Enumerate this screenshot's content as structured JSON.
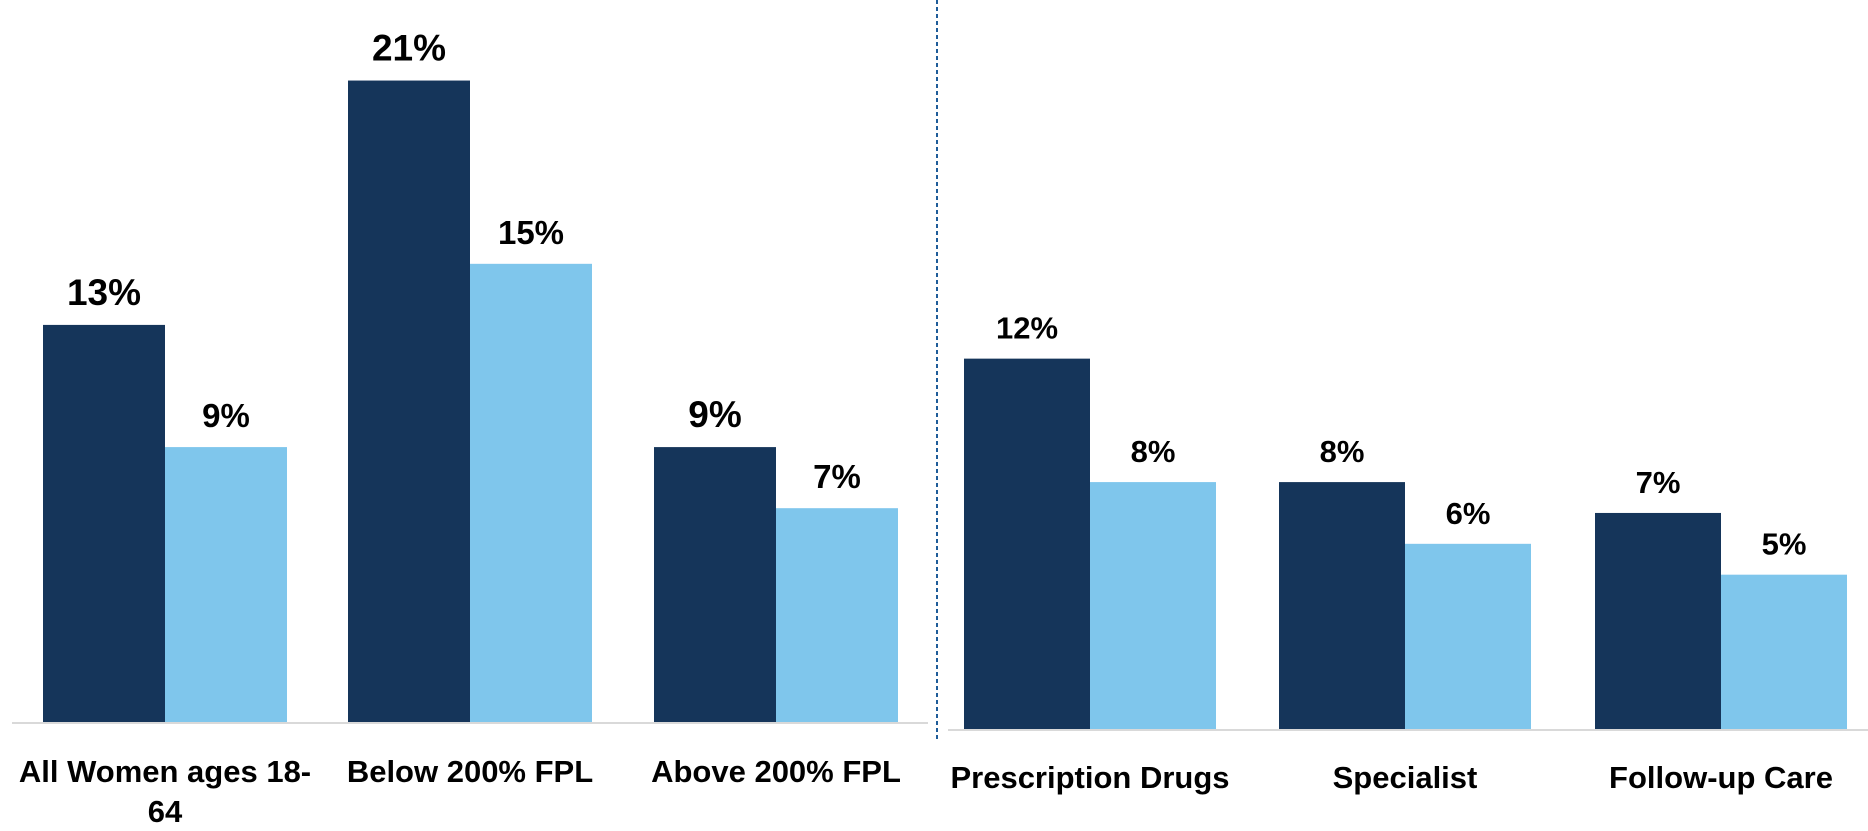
{
  "colors": {
    "primary": "#15355a",
    "secondary": "#7fc6ec",
    "divider": "#1f5c99",
    "axis": "#d9d9d9"
  },
  "chart_data": [
    {
      "type": "bar",
      "categories": [
        "All Women ages 18-64",
        "Below 200% FPL",
        "Above 200% FPL"
      ],
      "series": [
        {
          "values": [
            13,
            21,
            9
          ]
        },
        {
          "values": [
            9,
            15,
            7
          ]
        }
      ],
      "value_labels": [
        [
          "13%",
          "21%",
          "9%"
        ],
        [
          "9%",
          "15%",
          "7%"
        ]
      ],
      "ylim": [
        0,
        22
      ],
      "grid": false,
      "legend": "none"
    },
    {
      "type": "bar",
      "categories": [
        "Prescription Drugs",
        "Specialist",
        "Follow-up Care"
      ],
      "series": [
        {
          "values": [
            12,
            8,
            7
          ]
        },
        {
          "values": [
            8,
            6,
            5
          ]
        }
      ],
      "value_labels": [
        [
          "12%",
          "8%",
          "7%"
        ],
        [
          "8%",
          "6%",
          "5%"
        ]
      ],
      "ylim": [
        0,
        22
      ],
      "grid": false,
      "legend": "none"
    }
  ]
}
